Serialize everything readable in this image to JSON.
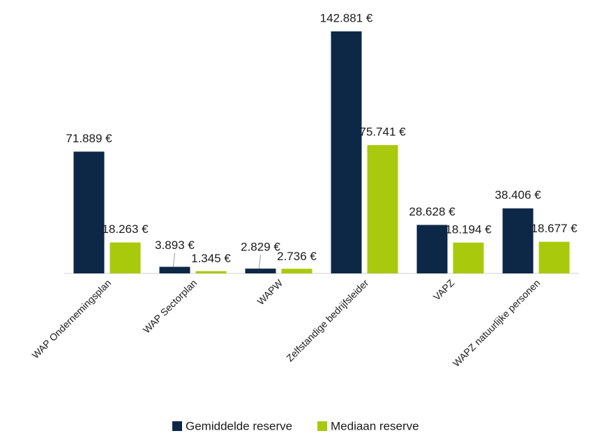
{
  "chart_data": {
    "type": "bar",
    "categories": [
      "WAP Ondernemingsplan",
      "WAP Sectorplan",
      "WAPW",
      "Zelfstandige bedrijfsleider",
      "VAPZ",
      "WAPZ natuurlijke personen"
    ],
    "series": [
      {
        "name": "Gemiddelde reserve",
        "color": "#0d2847",
        "values": [
          71889,
          3893,
          2829,
          142881,
          28628,
          38406
        ],
        "value_labels": [
          "71.889 €",
          "3.893 €",
          "2.829 €",
          "142.881 €",
          "28.628 €",
          "38.406 €"
        ]
      },
      {
        "name": "Mediaan reserve",
        "color": "#a9c90c",
        "values": [
          18263,
          1345,
          2736,
          75741,
          18194,
          18677
        ],
        "value_labels": [
          "18.263 €",
          "1.345 €",
          "2.736 €",
          "75.741 €",
          "18.194 €",
          "18.677 €"
        ]
      }
    ]
  }
}
